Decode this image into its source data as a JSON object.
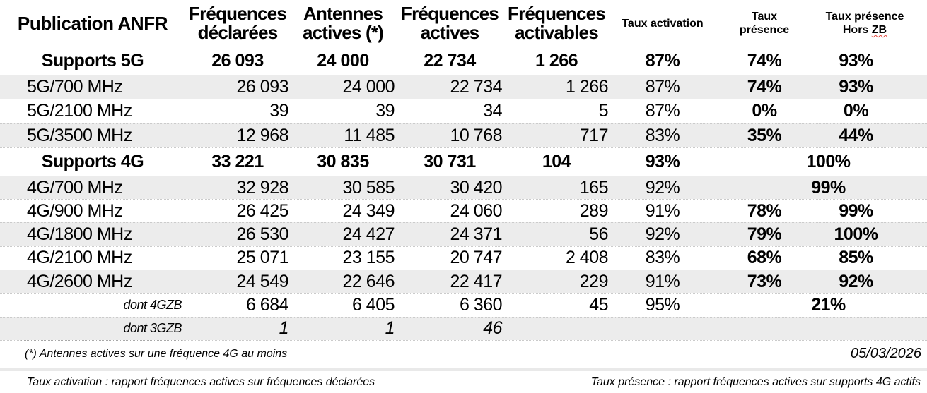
{
  "header": {
    "col1": "Publication ANFR",
    "col2_l1": "Fréquences",
    "col2_l2": "déclarées",
    "col3_l1": "Antennes",
    "col3_l2": "actives (*)",
    "col4_l1": "Fréquences",
    "col4_l2": "actives",
    "col5_l1": "Fréquences",
    "col5_l2": "activables",
    "col6": "Taux activation",
    "col7_l1": "Taux",
    "col7_l2": "présence",
    "col8_l1": "Taux présence",
    "col8_l2a": "Hors ",
    "col8_l2b": "ZB"
  },
  "rows": [
    {
      "label": "Supports 5G",
      "kind": "total",
      "declarees": "26 093",
      "antennes": "24 000",
      "actives": "22 734",
      "activables": "1 266",
      "activation": "87%",
      "presence": "74%",
      "presence_hzb": "93%",
      "merged": false
    },
    {
      "label": "5G/700 MHz",
      "kind": "sub5g",
      "declarees": "26 093",
      "antennes": "24 000",
      "actives": "22 734",
      "activables": "1 266",
      "activation": "87%",
      "presence": "74%",
      "presence_hzb": "93%",
      "merged": false
    },
    {
      "label": "5G/2100 MHz",
      "kind": "sub5g",
      "declarees": "39",
      "antennes": "39",
      "actives": "34",
      "activables": "5",
      "activation": "87%",
      "presence": "0%",
      "presence_hzb": "0%",
      "merged": false
    },
    {
      "label": "5G/3500 MHz",
      "kind": "sub5g",
      "declarees": "12 968",
      "antennes": "11 485",
      "actives": "10 768",
      "activables": "717",
      "activation": "83%",
      "presence": "35%",
      "presence_hzb": "44%",
      "merged": false
    },
    {
      "label": "Supports 4G",
      "kind": "total",
      "declarees": "33 221",
      "antennes": "30 835",
      "actives": "30 731",
      "activables": "104",
      "activation": "93%",
      "presence": "",
      "presence_hzb": "100%",
      "merged": true
    },
    {
      "label": "4G/700 MHz",
      "kind": "sub4g",
      "declarees": "32 928",
      "antennes": "30 585",
      "actives": "30 420",
      "activables": "165",
      "activation": "92%",
      "presence": "",
      "presence_hzb": "99%",
      "merged": true
    },
    {
      "label": "4G/900 MHz",
      "kind": "sub4g",
      "declarees": "26 425",
      "antennes": "24 349",
      "actives": "24 060",
      "activables": "289",
      "activation": "91%",
      "presence": "78%",
      "presence_hzb": "99%",
      "merged": false
    },
    {
      "label": "4G/1800 MHz",
      "kind": "sub4g",
      "declarees": "26 530",
      "antennes": "24 427",
      "actives": "24 371",
      "activables": "56",
      "activation": "92%",
      "presence": "79%",
      "presence_hzb": "100%",
      "merged": false
    },
    {
      "label": "4G/2100 MHz",
      "kind": "sub4g",
      "declarees": "25 071",
      "antennes": "23 155",
      "actives": "20 747",
      "activables": "2 408",
      "activation": "83%",
      "presence": "68%",
      "presence_hzb": "85%",
      "merged": false
    },
    {
      "label": "4G/2600 MHz",
      "kind": "sub4g",
      "declarees": "24 549",
      "antennes": "22 646",
      "actives": "22 417",
      "activables": "229",
      "activation": "91%",
      "presence": "73%",
      "presence_hzb": "92%",
      "merged": false
    },
    {
      "label": "dont 4GZB",
      "kind": "dont",
      "declarees": "6 684",
      "antennes": "6 405",
      "actives": "6 360",
      "activables": "45",
      "activation": "95%",
      "presence": "",
      "presence_hzb": "21%",
      "merged": true
    },
    {
      "label": "dont 3GZB",
      "kind": "dont",
      "italic_values": true,
      "declarees": "1",
      "antennes": "1",
      "actives": "46",
      "activables": "",
      "activation": "",
      "presence": "",
      "presence_hzb": "",
      "merged": false
    }
  ],
  "footer": {
    "star_note": "(*) Antennes actives sur une fréquence 4G au moins",
    "date": "05/03/2026",
    "note_activation": "Taux activation : rapport fréquences actives sur fréquences déclarées",
    "note_presence": "Taux présence : rapport fréquences actives sur supports 4G actifs"
  }
}
